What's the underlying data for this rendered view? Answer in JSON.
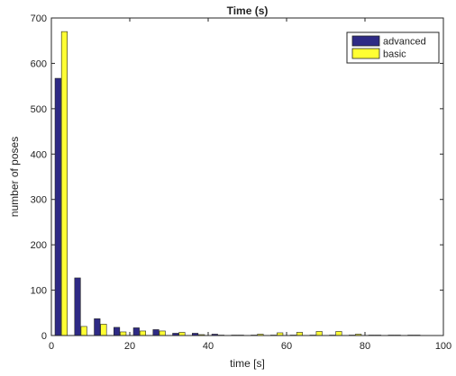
{
  "chart_data": {
    "type": "bar",
    "title": "Time (s)",
    "xlabel": "time [s]",
    "ylabel": "number of poses",
    "xlim": [
      0,
      100
    ],
    "ylim": [
      0,
      700
    ],
    "xticks": [
      0,
      20,
      40,
      60,
      80,
      100
    ],
    "yticks": [
      0,
      100,
      200,
      300,
      400,
      500,
      600,
      700
    ],
    "grid": false,
    "legend_position": "top-right",
    "x": [
      2.5,
      7.5,
      12.5,
      17.5,
      22.5,
      27.5,
      32.5,
      37.5,
      42.5,
      47.5,
      52.5,
      57.5,
      62.5,
      67.5,
      72.5,
      77.5,
      82.5,
      87.5,
      92.5
    ],
    "series": [
      {
        "name": "advanced",
        "color": "#2e2a85",
        "values": [
          567,
          127,
          37,
          18,
          17,
          13,
          5,
          5,
          3,
          1,
          1,
          1,
          1,
          1,
          1,
          1,
          1,
          1,
          1
        ]
      },
      {
        "name": "basic",
        "color": "#ffff33",
        "values": [
          670,
          20,
          25,
          8,
          10,
          10,
          7,
          2,
          1,
          1,
          3,
          6,
          7,
          9,
          9,
          3,
          1,
          1,
          1
        ]
      }
    ]
  }
}
